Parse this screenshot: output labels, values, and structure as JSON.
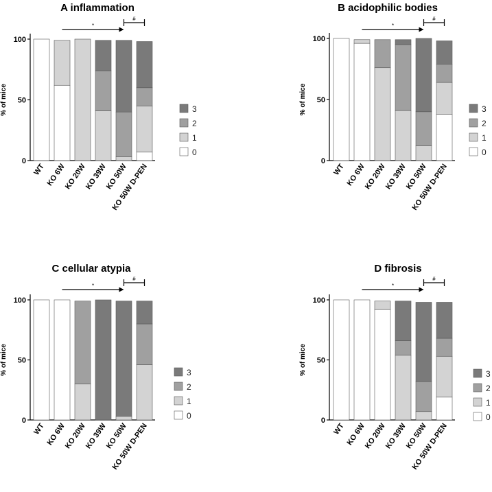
{
  "colors": {
    "0": "#ffffff",
    "1": "#d3d3d3",
    "2": "#a0a0a0",
    "3": "#7a7a7a",
    "stroke": "#555555",
    "axis": "#000000"
  },
  "chart_data": [
    {
      "type": "bar",
      "stacked": true,
      "letter": "A",
      "title": "inflammation",
      "ylabel": "% of mice",
      "ylim": [
        0,
        100
      ],
      "yticks": [
        "0",
        "50",
        "100"
      ],
      "categories": [
        "WT",
        "KO 6W",
        "KO 20W",
        "KO 39W",
        "KO 50W",
        "KO 50W D-PEN"
      ],
      "series": [
        {
          "name": "0",
          "values": [
            100,
            62,
            0,
            0,
            0,
            7
          ]
        },
        {
          "name": "1",
          "values": [
            0,
            37,
            100,
            41,
            3,
            38
          ]
        },
        {
          "name": "2",
          "values": [
            0,
            0,
            0,
            33,
            37,
            15
          ]
        },
        {
          "name": "3",
          "values": [
            0,
            0,
            0,
            25,
            59,
            38
          ]
        }
      ],
      "legend": [
        "3",
        "2",
        "1",
        "0"
      ],
      "annotations": [
        {
          "type": "arrow",
          "from": "KO 6W",
          "to": "KO 50W",
          "label": "*"
        },
        {
          "type": "bracket",
          "from": "KO 50W",
          "to": "KO 50W D-PEN",
          "label": "#"
        }
      ]
    },
    {
      "type": "bar",
      "stacked": true,
      "letter": "B",
      "title": "acidophilic bodies",
      "ylabel": "% of mice",
      "ylim": [
        0,
        100
      ],
      "yticks": [
        "0",
        "50",
        "100"
      ],
      "categories": [
        "WT",
        "KO 6W",
        "KO 20W",
        "KO 39W",
        "KO 50W",
        "KO 50W D-PEN"
      ],
      "series": [
        {
          "name": "0",
          "values": [
            100,
            96,
            0,
            0,
            0,
            38
          ]
        },
        {
          "name": "1",
          "values": [
            0,
            3,
            76,
            41,
            12,
            26
          ]
        },
        {
          "name": "2",
          "values": [
            0,
            0,
            23,
            54,
            28,
            15
          ]
        },
        {
          "name": "3",
          "values": [
            0,
            0,
            0,
            4,
            60,
            19
          ]
        }
      ],
      "legend": [
        "3",
        "2",
        "1",
        "0"
      ],
      "annotations": [
        {
          "type": "arrow",
          "from": "KO 6W",
          "to": "KO 50W",
          "label": "*"
        },
        {
          "type": "bracket",
          "from": "KO 50W",
          "to": "KO 50W D-PEN",
          "label": "#"
        }
      ]
    },
    {
      "type": "bar",
      "stacked": true,
      "letter": "C",
      "title": "cellular atypia",
      "ylabel": "% of mice",
      "ylim": [
        0,
        100
      ],
      "yticks": [
        "0",
        "50",
        "100"
      ],
      "categories": [
        "WT",
        "KO 6W",
        "KO 20W",
        "KO 39W",
        "KO 50W",
        "KO 50W D-PEN"
      ],
      "series": [
        {
          "name": "0",
          "values": [
            100,
            100,
            0,
            0,
            0,
            0
          ]
        },
        {
          "name": "1",
          "values": [
            0,
            0,
            30,
            0,
            3,
            46
          ]
        },
        {
          "name": "2",
          "values": [
            0,
            0,
            69,
            0,
            0,
            34
          ]
        },
        {
          "name": "3",
          "values": [
            0,
            0,
            0,
            100,
            96,
            19
          ]
        }
      ],
      "legend": [
        "3",
        "2",
        "1",
        "0"
      ],
      "annotations": [
        {
          "type": "arrow",
          "from": "KO 6W",
          "to": "KO 50W",
          "label": "*"
        },
        {
          "type": "bracket",
          "from": "KO 50W",
          "to": "KO 50W D-PEN",
          "label": "#"
        }
      ]
    },
    {
      "type": "bar",
      "stacked": true,
      "letter": "D",
      "title": "fibrosis",
      "ylabel": "% of mice",
      "ylim": [
        0,
        100
      ],
      "yticks": [
        "0",
        "50",
        "100"
      ],
      "categories": [
        "WT",
        "KO 6W",
        "KO 20W",
        "KO 39W",
        "KO 50W",
        "KO 50W D-PEN"
      ],
      "series": [
        {
          "name": "0",
          "values": [
            100,
            100,
            92,
            0,
            0,
            19
          ]
        },
        {
          "name": "1",
          "values": [
            0,
            0,
            7,
            54,
            7,
            34
          ]
        },
        {
          "name": "2",
          "values": [
            0,
            0,
            0,
            12,
            25,
            15
          ]
        },
        {
          "name": "3",
          "values": [
            0,
            0,
            0,
            33,
            66,
            30
          ]
        }
      ],
      "legend": [
        "3",
        "2",
        "1",
        "0"
      ],
      "annotations": [
        {
          "type": "arrow",
          "from": "KO 6W",
          "to": "KO 50W",
          "label": "*"
        },
        {
          "type": "bracket",
          "from": "KO 50W",
          "to": "KO 50W D-PEN",
          "label": "#"
        }
      ]
    }
  ]
}
